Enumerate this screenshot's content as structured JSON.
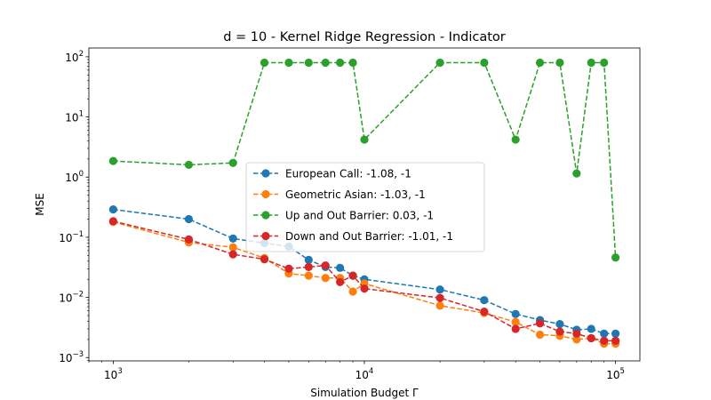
{
  "chart_data": {
    "type": "line",
    "title": "d = 10 - Kernel Ridge Regression - Indicator",
    "xlabel": "Simulation Budget Γ",
    "ylabel": "MSE",
    "xscale": "log",
    "yscale": "log",
    "xlim": [
      800,
      125000
    ],
    "ylim": [
      0.00088,
      140
    ],
    "x_ticks": [
      {
        "value": 1000,
        "base": "10",
        "exp": "3"
      },
      {
        "value": 10000,
        "base": "10",
        "exp": "4"
      },
      {
        "value": 100000,
        "base": "10",
        "exp": "5"
      }
    ],
    "y_ticks": [
      {
        "value": 0.001,
        "base": "10",
        "exp": "−3"
      },
      {
        "value": 0.01,
        "base": "10",
        "exp": "−2"
      },
      {
        "value": 0.1,
        "base": "10",
        "exp": "−1"
      },
      {
        "value": 1,
        "base": "10",
        "exp": "0"
      },
      {
        "value": 10,
        "base": "10",
        "exp": "1"
      },
      {
        "value": 100,
        "base": "10",
        "exp": "2"
      }
    ],
    "grid": false,
    "legend_position": "center",
    "x": [
      1000,
      2000,
      3000,
      4000,
      5000,
      6000,
      7000,
      8000,
      9000,
      10000,
      20000,
      30000,
      40000,
      50000,
      60000,
      70000,
      80000,
      90000,
      100000
    ],
    "series": [
      {
        "name": "European Call: -1.08, -1",
        "color": "#1f77b4",
        "values": [
          0.29,
          0.2,
          0.095,
          0.08,
          0.07,
          0.042,
          0.032,
          0.031,
          0.023,
          0.02,
          0.0135,
          0.009,
          0.0053,
          0.0042,
          0.0036,
          0.0029,
          0.003,
          0.0025,
          0.0025
        ]
      },
      {
        "name": "Geometric Asian: -1.03, -1",
        "color": "#ff7f0e",
        "values": [
          0.18,
          0.082,
          0.068,
          0.045,
          0.025,
          0.023,
          0.021,
          0.021,
          0.0125,
          0.017,
          0.0073,
          0.0055,
          0.0039,
          0.0024,
          0.0023,
          0.002,
          0.0021,
          0.0017,
          0.0017
        ]
      },
      {
        "name": "Up and Out Barrier: 0.03, -1",
        "color": "#2ca02c",
        "values": [
          1.85,
          1.6,
          1.72,
          80,
          80,
          80,
          80,
          80,
          80,
          4.2,
          80,
          80,
          4.2,
          80,
          80,
          1.15,
          80,
          80,
          0.046
        ]
      },
      {
        "name": "Down and Out Barrier: -1.01, -1",
        "color": "#d62728",
        "values": [
          0.185,
          0.092,
          0.052,
          0.043,
          0.03,
          0.032,
          0.034,
          0.018,
          0.023,
          0.014,
          0.0098,
          0.0058,
          0.003,
          0.0037,
          0.0027,
          0.0025,
          0.0021,
          0.0019,
          0.0019
        ]
      }
    ]
  }
}
